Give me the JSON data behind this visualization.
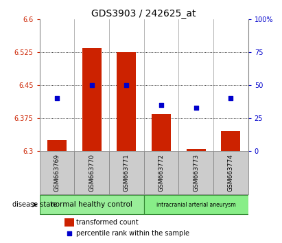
{
  "title": "GDS3903 / 242625_at",
  "samples": [
    "GSM663769",
    "GSM663770",
    "GSM663771",
    "GSM663772",
    "GSM663773",
    "GSM663774"
  ],
  "bar_values": [
    6.325,
    6.535,
    6.525,
    6.385,
    6.305,
    6.345
  ],
  "bar_base": 6.3,
  "percentile_values": [
    40,
    50,
    50,
    35,
    33,
    40
  ],
  "ylim_left": [
    6.3,
    6.6
  ],
  "ylim_right": [
    0,
    100
  ],
  "yticks_left": [
    6.3,
    6.375,
    6.45,
    6.525,
    6.6
  ],
  "yticks_right": [
    0,
    25,
    50,
    75,
    100
  ],
  "ytick_labels_right": [
    "0",
    "25",
    "50",
    "75",
    "100%"
  ],
  "bar_color": "#cc2200",
  "dot_color": "#0000cc",
  "groups": [
    {
      "label": "normal healthy control",
      "samples_idx": [
        0,
        1,
        2
      ],
      "color": "#99ee99"
    },
    {
      "label": "intracranial arterial aneurysm",
      "samples_idx": [
        3,
        4,
        5
      ],
      "color": "#88ee88"
    }
  ],
  "disease_state_label": "disease state",
  "legend_bar_label": "transformed count",
  "legend_dot_label": "percentile rank within the sample",
  "grid_color": "#000000",
  "bg_color": "#ffffff",
  "plot_bg_color": "#ffffff",
  "tick_label_color_left": "#cc2200",
  "tick_label_color_right": "#0000cc",
  "title_fontsize": 10,
  "sample_box_color": "#cccccc",
  "sample_box_edge": "#888888",
  "group_edge_color": "#338833"
}
